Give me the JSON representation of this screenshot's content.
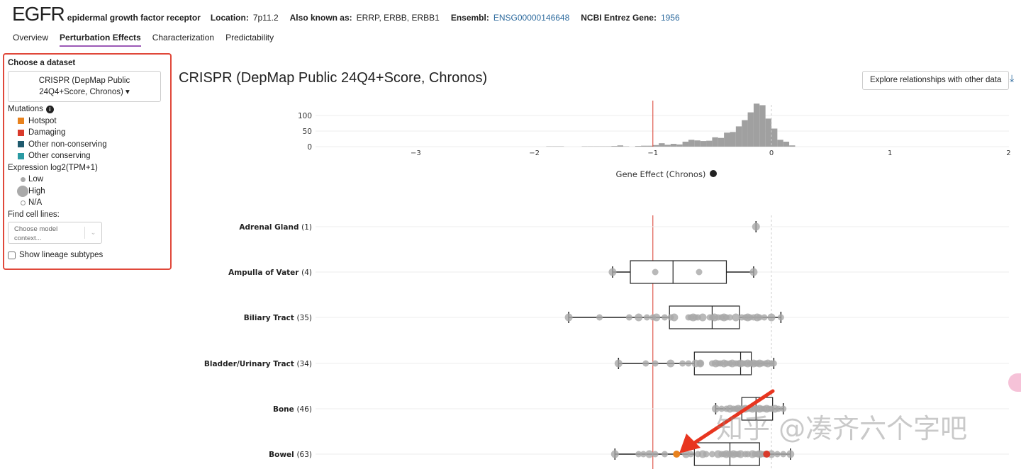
{
  "gene": {
    "symbol": "EGFR",
    "full_name": "epidermal growth factor receptor",
    "location_label": "Location:",
    "location": "7p11.2",
    "aka_label": "Also known as:",
    "aka": "ERRP, ERBB, ERBB1",
    "ensembl_label": "Ensembl:",
    "ensembl": "ENSG00000146648",
    "entrez_label": "NCBI Entrez Gene:",
    "entrez": "1956"
  },
  "tabs": [
    {
      "label": "Overview"
    },
    {
      "label": "Perturbation Effects",
      "active": true
    },
    {
      "label": "Characterization"
    },
    {
      "label": "Predictability"
    }
  ],
  "sidebar": {
    "choose_dataset": "Choose a dataset",
    "dataset": "CRISPR (DepMap Public 24Q4+Score, Chronos) ▾",
    "mutations_label": "Mutations",
    "mutations": [
      {
        "label": "Hotspot",
        "color": "#e8821e"
      },
      {
        "label": "Damaging",
        "color": "#d93a2b"
      },
      {
        "label": "Other non-conserving",
        "color": "#1f5a6e"
      },
      {
        "label": "Other conserving",
        "color": "#2a9aa3"
      }
    ],
    "expression_label": "Expression log2(TPM+1)",
    "expression": [
      {
        "label": "Low"
      },
      {
        "label": "High"
      },
      {
        "label": "N/A"
      }
    ],
    "find_label": "Find cell lines:",
    "find_placeholder": "Choose model context...",
    "subtypes_label": "Show lineage subtypes"
  },
  "main": {
    "title": "CRISPR (DepMap Public 24Q4+Score, Chronos)",
    "explore_button": "Explore relationships with other data"
  },
  "chart_data": {
    "type": "histogram+box",
    "xlabel": "Gene Effect (Chronos)",
    "xlim": [
      -3,
      2
    ],
    "xticks": [
      "−3",
      "−2",
      "−1",
      "0",
      "1",
      "2"
    ],
    "yticks": [
      "0",
      "50",
      "100"
    ],
    "reference_lines": [
      -1,
      0
    ],
    "histogram": {
      "bin_width": 0.05,
      "bin_starts": [
        -1.9,
        -1.85,
        -1.8,
        -1.6,
        -1.55,
        -1.5,
        -1.45,
        -1.4,
        -1.35,
        -1.3,
        -1.25,
        -1.15,
        -1.1,
        -1.05,
        -1.0,
        -0.95,
        -0.9,
        -0.85,
        -0.8,
        -0.75,
        -0.7,
        -0.65,
        -0.6,
        -0.55,
        -0.5,
        -0.45,
        -0.4,
        -0.35,
        -0.3,
        -0.25,
        -0.2,
        -0.15,
        -0.1,
        -0.05,
        0.0,
        0.05,
        0.1,
        0.15
      ],
      "counts": [
        1,
        1,
        1,
        1,
        1,
        1,
        1,
        1,
        2,
        4,
        1,
        2,
        3,
        3,
        5,
        11,
        6,
        9,
        7,
        16,
        22,
        20,
        18,
        19,
        30,
        28,
        45,
        47,
        65,
        85,
        110,
        138,
        133,
        90,
        58,
        22,
        16,
        4
      ]
    },
    "lineages": [
      {
        "name": "Adrenal Gland",
        "n": "(1)",
        "box": [
          -0.13,
          -0.13,
          -0.13,
          -0.13,
          -0.13
        ],
        "points": [
          -0.13
        ]
      },
      {
        "name": "Ampulla of Vater",
        "n": "(4)",
        "box": [
          -1.34,
          -1.19,
          -0.83,
          -0.38,
          -0.15
        ],
        "points": [
          -1.34,
          -0.98,
          -0.61,
          -0.15
        ]
      },
      {
        "name": "Biliary Tract",
        "n": "(35)",
        "box": [
          -1.71,
          -0.86,
          -0.5,
          -0.27,
          0.08
        ],
        "points": [
          -1.71,
          -1.45,
          -1.2,
          -1.12,
          -1.05,
          -1.0,
          -0.97,
          -0.9,
          -0.85,
          -0.82,
          -0.7,
          -0.68,
          -0.66,
          -0.64,
          -0.62,
          -0.58,
          -0.52,
          -0.5,
          -0.48,
          -0.45,
          -0.42,
          -0.4,
          -0.38,
          -0.35,
          -0.3,
          -0.25,
          -0.22,
          -0.2,
          -0.18,
          -0.15,
          -0.12,
          -0.1,
          -0.06,
          0.0,
          0.08
        ]
      },
      {
        "name": "Bladder/Urinary Tract",
        "n": "(34)",
        "box": [
          -1.29,
          -0.65,
          -0.26,
          -0.17,
          0.02
        ],
        "points": [
          -1.29,
          -1.06,
          -0.98,
          -0.85,
          -0.75,
          -0.7,
          -0.64,
          -0.6,
          -0.5,
          -0.47,
          -0.45,
          -0.43,
          -0.4,
          -0.38,
          -0.35,
          -0.33,
          -0.3,
          -0.28,
          -0.26,
          -0.24,
          -0.22,
          -0.2,
          -0.18,
          -0.17,
          -0.15,
          -0.13,
          -0.12,
          -0.1,
          -0.08,
          -0.05,
          -0.03,
          0.0,
          0.02,
          -0.6
        ]
      },
      {
        "name": "Bone",
        "n": "(46)",
        "box": [
          -0.47,
          -0.25,
          -0.13,
          0.01,
          0.1
        ],
        "points": [
          -0.47,
          -0.42,
          -0.38,
          -0.35,
          -0.32,
          -0.3,
          -0.28,
          -0.26,
          -0.24,
          -0.22,
          -0.2,
          -0.18,
          -0.16,
          -0.14,
          -0.12,
          -0.1,
          -0.08,
          -0.06,
          -0.04,
          -0.02,
          0.0,
          0.03,
          0.06,
          0.1
        ]
      },
      {
        "name": "Bowel",
        "n": "(63)",
        "box": [
          -1.32,
          -0.65,
          -0.35,
          -0.1,
          0.16
        ],
        "points": [
          -1.32,
          -1.12,
          -1.08,
          -1.03,
          -0.98,
          -0.9,
          -0.72,
          -0.68,
          -0.62,
          -0.58,
          -0.55,
          -0.5,
          -0.45,
          -0.42,
          -0.4,
          -0.38,
          -0.36,
          -0.34,
          -0.32,
          -0.3,
          -0.28,
          -0.26,
          -0.22,
          -0.2,
          -0.16,
          -0.14,
          -0.12,
          -0.1,
          -0.08,
          -0.06,
          0.0,
          0.05,
          0.1,
          0.16
        ],
        "mutations": [
          {
            "value": -0.8,
            "type": "Hotspot",
            "color": "#e8821e"
          },
          {
            "value": -0.04,
            "type": "Damaging",
            "color": "#d93a2b"
          }
        ]
      }
    ]
  },
  "overlay": {
    "watermark": "知乎 @凑齐六个字吧"
  }
}
